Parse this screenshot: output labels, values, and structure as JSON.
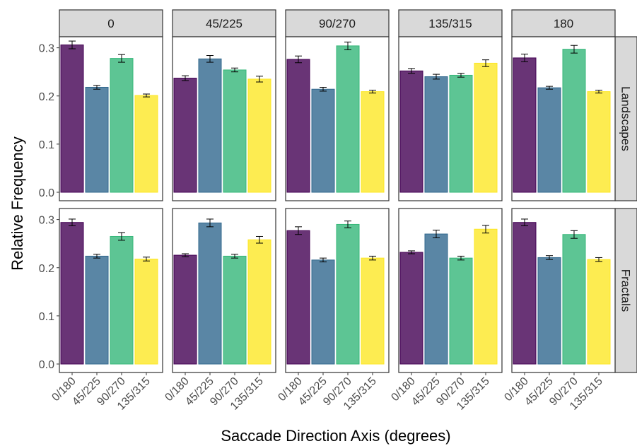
{
  "chart_data": {
    "type": "bar",
    "xlabel": "Saccade Direction Axis (degrees)",
    "ylabel": "Relative Frequency",
    "ylim": [
      0,
      0.32
    ],
    "yticks": [
      0.0,
      0.1,
      0.2,
      0.3
    ],
    "ytick_labels": [
      "0.0",
      "0.1",
      "0.2",
      "0.3"
    ],
    "categories": [
      "0/180",
      "45/225",
      "90/270",
      "135/315"
    ],
    "category_colors": [
      "#440154",
      "#31688e",
      "#35b779",
      "#fde725"
    ],
    "columns": [
      "0",
      "45/225",
      "90/270",
      "135/315",
      "180"
    ],
    "rows": [
      "Landscapes",
      "Fractals"
    ],
    "grid": false,
    "legend": "none",
    "panels": [
      {
        "row": "Landscapes",
        "column": "0",
        "values": [
          0.306,
          0.218,
          0.278,
          0.201
        ],
        "errors": [
          0.008,
          0.004,
          0.008,
          0.003
        ]
      },
      {
        "row": "Landscapes",
        "column": "45/225",
        "values": [
          0.237,
          0.277,
          0.254,
          0.235
        ],
        "errors": [
          0.005,
          0.007,
          0.004,
          0.006
        ]
      },
      {
        "row": "Landscapes",
        "column": "90/270",
        "values": [
          0.276,
          0.214,
          0.304,
          0.209
        ],
        "errors": [
          0.007,
          0.004,
          0.008,
          0.003
        ]
      },
      {
        "row": "Landscapes",
        "column": "135/315",
        "values": [
          0.252,
          0.24,
          0.243,
          0.268
        ],
        "errors": [
          0.005,
          0.005,
          0.004,
          0.007
        ]
      },
      {
        "row": "Landscapes",
        "column": "180",
        "values": [
          0.279,
          0.217,
          0.297,
          0.209
        ],
        "errors": [
          0.008,
          0.003,
          0.008,
          0.003
        ]
      },
      {
        "row": "Fractals",
        "column": "0",
        "values": [
          0.294,
          0.224,
          0.265,
          0.218
        ],
        "errors": [
          0.007,
          0.004,
          0.008,
          0.004
        ]
      },
      {
        "row": "Fractals",
        "column": "45/225",
        "values": [
          0.226,
          0.293,
          0.224,
          0.258
        ],
        "errors": [
          0.003,
          0.008,
          0.004,
          0.007
        ]
      },
      {
        "row": "Fractals",
        "column": "90/270",
        "values": [
          0.277,
          0.216,
          0.29,
          0.22
        ],
        "errors": [
          0.008,
          0.004,
          0.007,
          0.004
        ]
      },
      {
        "row": "Fractals",
        "column": "135/315",
        "values": [
          0.232,
          0.27,
          0.22,
          0.28
        ],
        "errors": [
          0.003,
          0.008,
          0.004,
          0.008
        ]
      },
      {
        "row": "Fractals",
        "column": "180",
        "values": [
          0.294,
          0.221,
          0.269,
          0.217
        ],
        "errors": [
          0.007,
          0.004,
          0.008,
          0.004
        ]
      }
    ]
  }
}
